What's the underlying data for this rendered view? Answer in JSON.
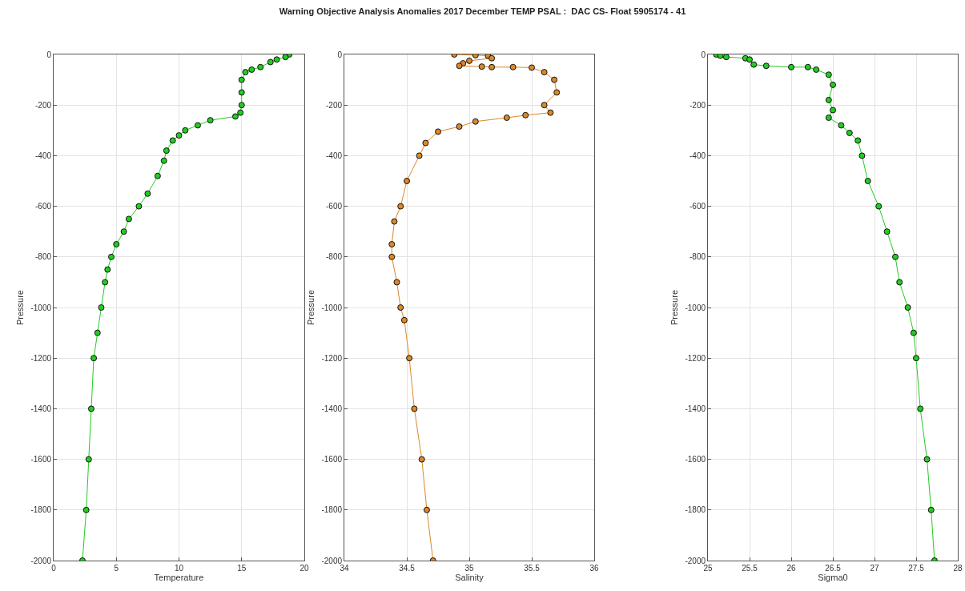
{
  "chart_data": [
    {
      "type": "line",
      "xlabel": "Temperature",
      "ylabel": "Pressure",
      "marker": "circle",
      "grid": true,
      "xlim": [
        0,
        20
      ],
      "xticks": [
        0,
        5,
        10,
        15,
        20
      ],
      "ylim": [
        -2000,
        0
      ],
      "yticks": [
        -2000,
        -1800,
        -1600,
        -1400,
        -1200,
        -1000,
        -800,
        -600,
        -400,
        -200,
        0
      ],
      "series": [
        {
          "color": "#22cc22",
          "x": [
            18.8,
            18.5,
            17.8,
            17.3,
            16.5,
            15.8,
            15.3,
            15.0,
            15.0,
            15.0,
            14.9,
            14.5,
            12.5,
            11.5,
            10.5,
            10.0,
            9.5,
            9.0,
            8.8,
            8.3,
            7.5,
            6.8,
            6.0,
            5.6,
            5.0,
            4.6,
            4.3,
            4.1,
            3.8,
            3.5,
            3.2,
            3.0,
            2.8,
            2.6,
            2.3
          ],
          "values": [
            0,
            -10,
            -20,
            -30,
            -50,
            -60,
            -70,
            -100,
            -150,
            -200,
            -230,
            -245,
            -260,
            -280,
            -300,
            -320,
            -340,
            -380,
            -420,
            -480,
            -550,
            -600,
            -650,
            -700,
            -750,
            -800,
            -850,
            -900,
            -1000,
            -1100,
            -1200,
            -1400,
            -1600,
            -1800,
            -2000
          ]
        }
      ]
    },
    {
      "type": "line",
      "title": "Warning Objective Analysis Anomalies 2017 December TEMP PSAL :  DAC CS- Float 5905174 - 41",
      "xlabel": "Salinity",
      "ylabel": "Pressure",
      "marker": "circle",
      "grid": true,
      "xlim": [
        34,
        36
      ],
      "xticks": [
        34,
        34.5,
        35,
        35.5,
        36
      ],
      "ylim": [
        -2000,
        0
      ],
      "yticks": [
        -2000,
        -1800,
        -1600,
        -1400,
        -1200,
        -1000,
        -800,
        -600,
        -400,
        -200,
        0
      ],
      "series": [
        {
          "color": "#d9882a",
          "x": [
            34.88,
            35.05,
            35.15,
            35.18,
            35.0,
            34.95,
            34.92,
            35.1,
            35.18,
            35.35,
            35.5,
            35.6,
            35.68,
            35.7,
            35.6,
            35.65,
            35.45,
            35.3,
            35.05,
            34.92,
            34.75,
            34.65,
            34.6,
            34.5,
            34.45,
            34.4,
            34.38,
            34.38,
            34.42,
            34.45,
            34.48,
            34.52,
            34.56,
            34.62,
            34.66,
            34.71
          ],
          "values": [
            0,
            -3,
            -5,
            -15,
            -25,
            -35,
            -45,
            -48,
            -50,
            -50,
            -52,
            -70,
            -100,
            -150,
            -200,
            -230,
            -240,
            -250,
            -265,
            -285,
            -305,
            -350,
            -400,
            -500,
            -600,
            -660,
            -750,
            -800,
            -900,
            -1000,
            -1050,
            -1200,
            -1400,
            -1600,
            -1800,
            -2000
          ]
        }
      ]
    },
    {
      "type": "line",
      "xlabel": "Sigma0",
      "ylabel": "Pressure",
      "marker": "circle",
      "grid": true,
      "xlim": [
        25,
        28
      ],
      "xticks": [
        25,
        25.5,
        26,
        26.5,
        27,
        27.5,
        28
      ],
      "ylim": [
        -2000,
        0
      ],
      "yticks": [
        -2000,
        -1800,
        -1600,
        -1400,
        -1200,
        -1000,
        -800,
        -600,
        -400,
        -200,
        0
      ],
      "series": [
        {
          "color": "#22cc22",
          "x": [
            25.1,
            25.15,
            25.22,
            25.45,
            25.5,
            25.55,
            25.7,
            26.0,
            26.2,
            26.3,
            26.45,
            26.5,
            26.45,
            26.5,
            26.45,
            26.6,
            26.7,
            26.8,
            26.85,
            26.92,
            27.05,
            27.15,
            27.25,
            27.3,
            27.4,
            27.47,
            27.5,
            27.55,
            27.63,
            27.68,
            27.72
          ],
          "values": [
            0,
            -5,
            -10,
            -15,
            -20,
            -40,
            -45,
            -50,
            -50,
            -60,
            -80,
            -120,
            -180,
            -220,
            -250,
            -280,
            -310,
            -340,
            -400,
            -500,
            -600,
            -700,
            -800,
            -900,
            -1000,
            -1100,
            -1200,
            -1400,
            -1600,
            -1800,
            -2000
          ]
        }
      ]
    }
  ]
}
